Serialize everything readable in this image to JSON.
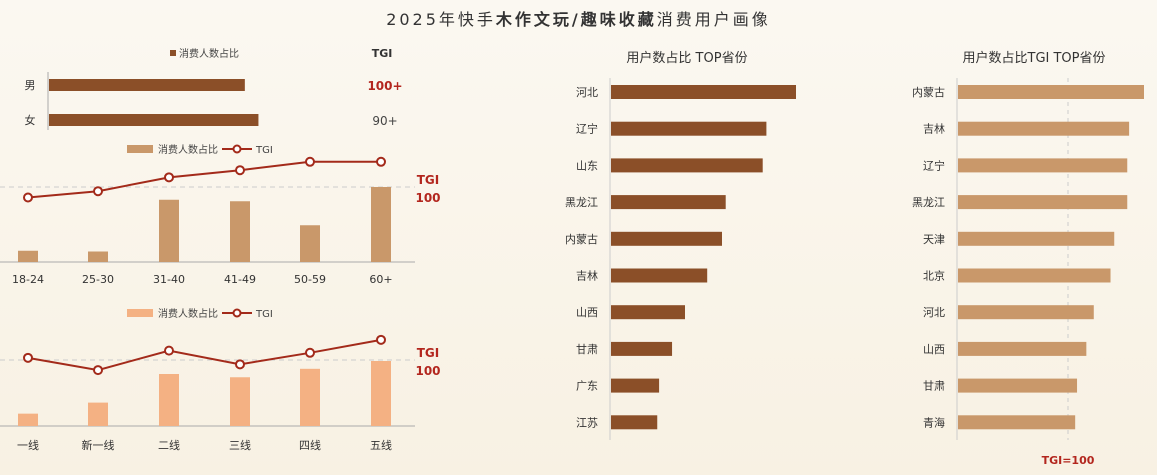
{
  "title_parts": {
    "prefix": "2025年快手",
    "bold": "木作文玩/趣味收藏",
    "suffix": "消费用户画像"
  },
  "colors": {
    "dark_brown": "#8b4f28",
    "mid_tan": "#c9986a",
    "light_orange": "#f4b183",
    "tgi_line": "#a32a1a",
    "tgi_text": "#b3261e"
  },
  "chart_data": [
    {
      "type": "bar",
      "orientation": "horizontal",
      "id": "gender",
      "legend": "消费人数占比",
      "tgi_header": "TGI",
      "categories": [
        "男",
        "女"
      ],
      "values": [
        0.72,
        0.77
      ],
      "tgi_labels": [
        "100+",
        "90+"
      ]
    },
    {
      "type": "bar+line",
      "id": "age",
      "legend_bar": "消费人数占比",
      "legend_line": "TGI",
      "tgi_ref_label_1": "TGI",
      "tgi_ref_label_2": "100",
      "categories": [
        "18-24",
        "25-30",
        "31-40",
        "41-49",
        "50-59",
        "60+"
      ],
      "bar_values": [
        0.15,
        0.14,
        0.83,
        0.81,
        0.49,
        1.0
      ],
      "tgi_values": [
        -0.25,
        -0.1,
        0.23,
        0.4,
        0.6,
        0.6
      ]
    },
    {
      "type": "bar+line",
      "id": "city_tier",
      "legend_bar": "消费人数占比",
      "legend_line": "TGI",
      "tgi_ref_label_1": "TGI",
      "tgi_ref_label_2": "100",
      "categories": [
        "一线",
        "新一线",
        "二线",
        "三线",
        "四线",
        "五线"
      ],
      "bar_values": [
        0.19,
        0.36,
        0.8,
        0.75,
        0.88,
        1.0
      ],
      "tgi_values": [
        0.06,
        -0.28,
        0.26,
        -0.12,
        0.2,
        0.56
      ]
    },
    {
      "type": "bar",
      "orientation": "horizontal",
      "id": "province_share",
      "title": "用户数占比 TOP省份",
      "categories": [
        "河北",
        "辽宁",
        "山东",
        "黑龙江",
        "内蒙古",
        "吉林",
        "山西",
        "甘肃",
        "广东",
        "江苏"
      ],
      "values": [
        1.0,
        0.84,
        0.82,
        0.62,
        0.6,
        0.52,
        0.4,
        0.33,
        0.26,
        0.25
      ]
    },
    {
      "type": "bar",
      "orientation": "horizontal",
      "id": "province_tgi",
      "title": "用户数占比TGI TOP省份",
      "categories": [
        "内蒙古",
        "吉林",
        "辽宁",
        "黑龙江",
        "天津",
        "北京",
        "河北",
        "山西",
        "甘肃",
        "青海"
      ],
      "values": [
        1.0,
        0.92,
        0.91,
        0.91,
        0.84,
        0.82,
        0.73,
        0.69,
        0.64,
        0.63
      ],
      "ref_label": "TGI=100"
    }
  ]
}
